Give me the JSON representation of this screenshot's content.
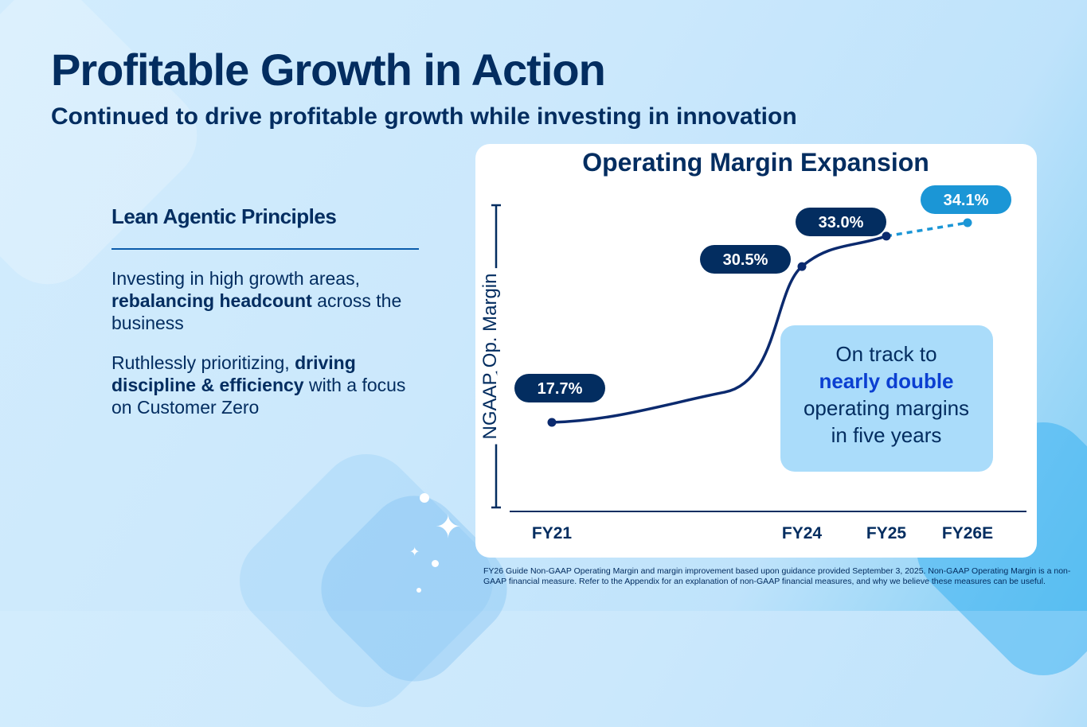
{
  "slide": {
    "title": "Profitable Growth in Action",
    "subtitle": "Continued to drive profitable growth while investing in innovation"
  },
  "principles": {
    "heading": "Lean Agentic Principles",
    "p1": {
      "a": "Investing in high growth areas, ",
      "b": "rebalancing headcount",
      "c": " across the business"
    },
    "p2": {
      "a": "Ruthlessly prioritizing, ",
      "b": "driving discipline & efficiency",
      "c": " with a focus on Customer Zero"
    }
  },
  "chart_data": {
    "type": "line",
    "title": "Operating Margin Expansion",
    "ylabel": "NGAAP Op. Margin",
    "xlabel": "",
    "categories": [
      "FY21",
      "FY24",
      "FY25",
      "FY26E"
    ],
    "values": [
      17.7,
      30.5,
      33.0,
      34.1
    ],
    "value_labels": [
      "17.7%",
      "30.5%",
      "33.0%",
      "34.1%"
    ],
    "estimated": [
      false,
      false,
      false,
      true
    ],
    "ylim": [
      15,
      36
    ],
    "grid": false,
    "callout": {
      "line1": "On track to",
      "emphasis": "nearly double",
      "line3": "operating margins",
      "line4": "in five years"
    }
  },
  "footnote": "FY26 Guide Non-GAAP Operating Margin and margin improvement based upon guidance provided September 3, 2025. Non-GAAP Operating Margin is a non-GAAP financial measure. Refer to the Appendix for an explanation of non-GAAP financial measures, and why we believe these measures can be useful.",
  "colors": {
    "navy": "#032d60",
    "line": "#0b2a6e",
    "accent": "#1b96d6",
    "emphasis": "#0b3fd1",
    "callout_bg": "#aadcfa"
  }
}
